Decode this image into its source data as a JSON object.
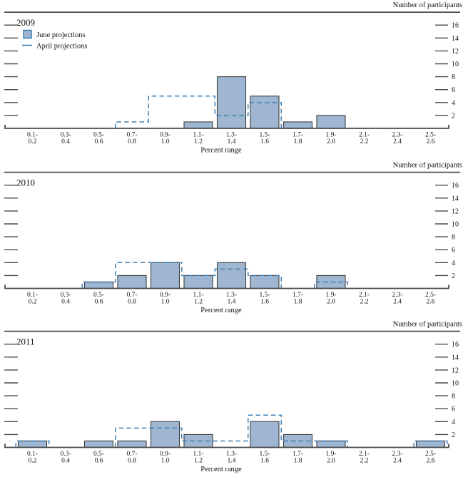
{
  "axes": {
    "y_label": "Number of participants",
    "x_label": "Percent range",
    "y_ticks": [
      2,
      4,
      6,
      8,
      10,
      12,
      14,
      16
    ],
    "y_max": 18
  },
  "legend": {
    "june_label": "June projections",
    "april_label": "April projections"
  },
  "colors": {
    "bar_fill": "#9eb6d1",
    "bar_border": "#3d3d3d",
    "april_line": "#3f80b8",
    "axis": "#4b4b4b",
    "text": "#121212"
  },
  "chart_data": [
    {
      "type": "bar",
      "title": "2009",
      "categories": [
        "0.1-0.2",
        "0.3-0.4",
        "0.5-0.6",
        "0.7-0.8",
        "0.9-1.0",
        "1.1-1.2",
        "1.3-1.4",
        "1.5-1.6",
        "1.7-1.8",
        "1.9-2.0",
        "2.1-2.2",
        "2.3-2.4",
        "2.5-2.6"
      ],
      "series": [
        {
          "name": "June projections",
          "style": "bar",
          "values": [
            0,
            0,
            0,
            0,
            0,
            1,
            8,
            5,
            1,
            2,
            0,
            0,
            0
          ]
        },
        {
          "name": "April projections",
          "style": "dashed-step",
          "values": [
            0,
            0,
            0,
            1,
            5,
            5,
            2,
            4,
            0,
            0,
            0,
            0,
            0
          ]
        }
      ],
      "xlabel": "Percent range",
      "ylabel": "Number of participants",
      "ylim": [
        0,
        18
      ],
      "legend_position": "top-left",
      "grid": false
    },
    {
      "type": "bar",
      "title": "2010",
      "categories": [
        "0.1-0.2",
        "0.3-0.4",
        "0.5-0.6",
        "0.7-0.8",
        "0.9-1.0",
        "1.1-1.2",
        "1.3-1.4",
        "1.5-1.6",
        "1.7-1.8",
        "1.9-2.0",
        "2.1-2.2",
        "2.3-2.4",
        "2.5-2.6"
      ],
      "series": [
        {
          "name": "June projections",
          "style": "bar",
          "values": [
            0,
            0,
            1,
            2,
            4,
            2,
            4,
            2,
            0,
            2,
            0,
            0,
            0
          ]
        },
        {
          "name": "April projections",
          "style": "dashed-step",
          "values": [
            0,
            0,
            1,
            4,
            4,
            2,
            3,
            2,
            0,
            1,
            0,
            0,
            0
          ]
        }
      ],
      "xlabel": "Percent range",
      "ylabel": "Number of participants",
      "ylim": [
        0,
        18
      ],
      "legend_position": "none",
      "grid": false
    },
    {
      "type": "bar",
      "title": "2011",
      "categories": [
        "0.1-0.2",
        "0.3-0.4",
        "0.5-0.6",
        "0.7-0.8",
        "0.9-1.0",
        "1.1-1.2",
        "1.3-1.4",
        "1.5-1.6",
        "1.7-1.8",
        "1.9-2.0",
        "2.1-2.2",
        "2.3-2.4",
        "2.5-2.6"
      ],
      "series": [
        {
          "name": "June projections",
          "style": "bar",
          "values": [
            1,
            0,
            1,
            1,
            4,
            2,
            0,
            4,
            2,
            1,
            0,
            0,
            1
          ]
        },
        {
          "name": "April projections",
          "style": "dashed-step",
          "values": [
            1,
            0,
            0,
            3,
            3,
            1,
            1,
            5,
            1,
            1,
            0,
            0,
            1
          ]
        }
      ],
      "xlabel": "Percent range",
      "ylabel": "Number of participants",
      "ylim": [
        0,
        18
      ],
      "legend_position": "none",
      "grid": false
    }
  ]
}
